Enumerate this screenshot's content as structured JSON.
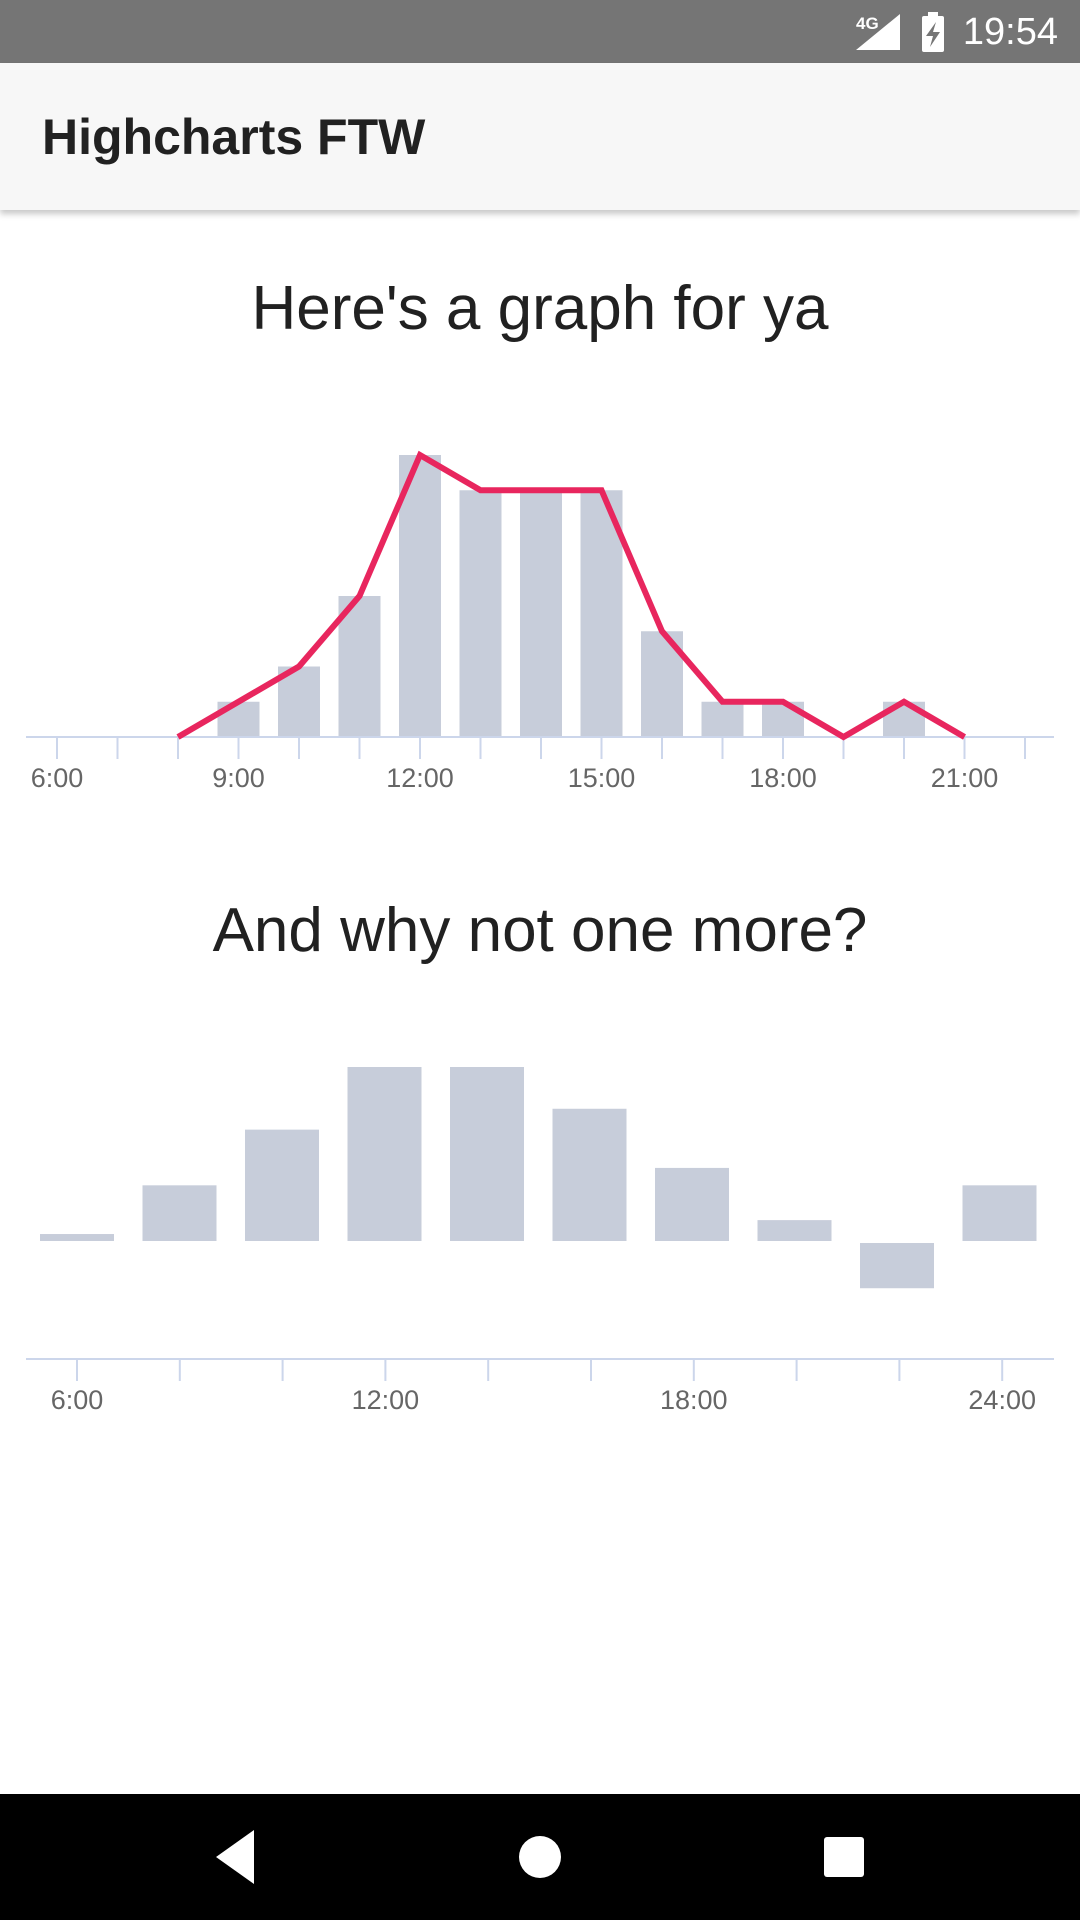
{
  "status_bar": {
    "time": "19:54",
    "network": "4G",
    "icons": [
      "signal-icon",
      "battery-charging-icon"
    ]
  },
  "app_bar": {
    "title": "Highcharts FTW"
  },
  "colors": {
    "bar": "#c7cdda",
    "line": "#e8265e",
    "axis": "#ccd6eb",
    "status_bar": "#757575",
    "app_bar": "#f7f7f7"
  },
  "chart_data": [
    {
      "type": "bar",
      "title": "Here's a graph for ya",
      "xlabel": "",
      "ylabel": "",
      "x_ticks": [
        "6:00",
        "9:00",
        "12:00",
        "15:00",
        "18:00",
        "21:00"
      ],
      "x_range": [
        6,
        22
      ],
      "ylim": [
        0,
        8
      ],
      "grid": false,
      "series": [
        {
          "type": "column",
          "x": [
            9,
            10,
            11,
            12,
            13,
            14,
            15,
            16,
            17,
            18,
            20
          ],
          "values": [
            1,
            2,
            4,
            8,
            7,
            7,
            7,
            3,
            1,
            1,
            1
          ]
        },
        {
          "type": "line",
          "x": [
            8,
            10,
            11,
            12,
            13,
            14,
            15,
            16,
            17,
            18,
            19,
            20,
            21
          ],
          "values": [
            0,
            2,
            4,
            8,
            7,
            7,
            7,
            3,
            1,
            1,
            0,
            1,
            0
          ]
        }
      ]
    },
    {
      "type": "bar",
      "title": "And why not one more?",
      "xlabel": "",
      "ylabel": "",
      "x_ticks": [
        "6:00",
        "12:00",
        "18:00",
        "24:00"
      ],
      "x_range": [
        5,
        25
      ],
      "ylim": [
        -4,
        5
      ],
      "grid": false,
      "series": [
        {
          "type": "column",
          "x": [
            5,
            7,
            9,
            11,
            13,
            15,
            17,
            19,
            21,
            23
          ],
          "values": [
            0.2,
            1.6,
            3.2,
            5,
            5,
            3.8,
            2.1,
            0.6,
            -1.3,
            1.6
          ]
        }
      ]
    }
  ]
}
